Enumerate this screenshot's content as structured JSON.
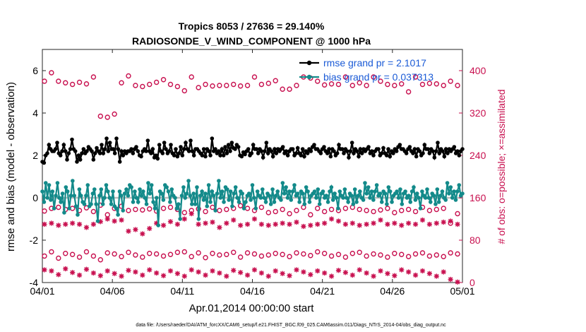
{
  "chart_data": {
    "type": "line",
    "title": "Tropics 8053 / 27636 = 29.140%",
    "subtitle": "RADIOSONDE_V_WIND_COMPONENT @ 1000 hPa",
    "xlabel": "Apr.01,2014 00:00:00 start",
    "ylabel": "rmse and bias (model - observation)",
    "ylabel_right": "# of obs: o=possible; ×=assimilated",
    "xlim": [
      0,
      30
    ],
    "ylim": [
      -4,
      7
    ],
    "ylim_right": [
      0,
      440
    ],
    "x_ticks": [
      0,
      5,
      10,
      15,
      20,
      25,
      30
    ],
    "x_tick_labels": [
      "04/01",
      "04/06",
      "04/11",
      "04/16",
      "04/21",
      "04/26",
      "05/01"
    ],
    "y_ticks": [
      -4,
      -2,
      0,
      2,
      4,
      6
    ],
    "y_tick_labels": [
      "-4",
      "-2",
      "0",
      "2",
      "4",
      "6"
    ],
    "y_right_ticks": [
      0,
      80,
      160,
      240,
      320,
      400
    ],
    "y_right_tick_labels": [
      "0",
      "80",
      "160",
      "240",
      "320",
      "400"
    ],
    "legend": [
      "rmse grand pr = 2.1017",
      "bias grand pr = 0.037313"
    ],
    "footer": "data file: /Users/raeder/DAI/ATM_forcXX/CAM6_setup/f.e21.FHIST_BGC.f09_025.CAM6assim.011/Diags_NTrS_2014-04/obs_diag_output.nc",
    "series": [
      {
        "name": "rmse",
        "color": "#000000",
        "axis": "left",
        "values": [
          1.7,
          1.65,
          2.0,
          2.1,
          2.5,
          2.3,
          2.2,
          2.2,
          2.3,
          2.6,
          2.1,
          2.0,
          2.2,
          2.5,
          2.2,
          1.8,
          2.1,
          2.3,
          2.75,
          2.3,
          2.2,
          1.7,
          2.0,
          1.8,
          2.1,
          2.3,
          2.1,
          2.2,
          2.4,
          2.3,
          2.2,
          1.8,
          2.1,
          2.35,
          2.2,
          2.1,
          2.5,
          2.1,
          2.3,
          2.8,
          2.2,
          2.6,
          2.3,
          2.3,
          2.1,
          2.8,
          2.3,
          1.7,
          2.2,
          2.0,
          2.2,
          2.1,
          2.2,
          2.2,
          2.3,
          2.1,
          2.3,
          2.4,
          2.2,
          2.0,
          1.95,
          2.2,
          2.3,
          2.2,
          2.7,
          2.2,
          2.1,
          2.3,
          1.9,
          2.0,
          1.85,
          2.5,
          2.2,
          2.1,
          2.6,
          2.3,
          2.1,
          2.2,
          2.5,
          2.1,
          2.0,
          2.3,
          1.95,
          2.1,
          2.4,
          2.0,
          2.3,
          2.6,
          2.3,
          2.2,
          2.7,
          2.2,
          2.0,
          2.3,
          2.3,
          2.2,
          2.1,
          2.0,
          2.3,
          1.95,
          2.3,
          2.2,
          2.0,
          2.8,
          2.2,
          2.3,
          2.1,
          2.2,
          2.0,
          2.3,
          2.0,
          2.4,
          2.1,
          2.5,
          2.2,
          2.6,
          2.35,
          2.3,
          2.5,
          2.4,
          2.0,
          1.95,
          2.15,
          2.05,
          2.2,
          2.3,
          2.0,
          2.1,
          2.5,
          2.3,
          2.3,
          2.1,
          2.3,
          2.2,
          1.9,
          2.2,
          2.6,
          2.1,
          2.3,
          2.2,
          1.95,
          2.3,
          2.1,
          2.3,
          2.2,
          2.3,
          2.4,
          2.1,
          2.2,
          2.0,
          2.2,
          2.3,
          2.3,
          2.0,
          2.1,
          2.35,
          2.1,
          2.0,
          2.3,
          1.95,
          2.2,
          2.1,
          2.3,
          2.2,
          2.4,
          2.5,
          2.3,
          2.3,
          2.2,
          2.1,
          2.3,
          2.4,
          2.2,
          2.1,
          2.3,
          1.95,
          2.3,
          2.2,
          2.0,
          2.1,
          2.5,
          2.3,
          2.3,
          2.1,
          2.3,
          2.2,
          1.9,
          2.2,
          2.6,
          2.1,
          2.3,
          2.2,
          1.95,
          2.3,
          2.1,
          2.3,
          2.2,
          2.3,
          2.4,
          2.1,
          2.2,
          2.0,
          2.2,
          2.3,
          2.3,
          2.0,
          2.1,
          2.35,
          2.1,
          2.0,
          2.3,
          1.95,
          2.2,
          2.1,
          2.3,
          2.2,
          2.4,
          2.5,
          2.3,
          2.3,
          2.2,
          2.1,
          2.3,
          2.4,
          2.2,
          2.1,
          2.3,
          1.95,
          2.3,
          2.2,
          2.0,
          2.1,
          2.5,
          2.3,
          2.3,
          2.1,
          2.3,
          2.2,
          1.9,
          2.2,
          2.6,
          2.1,
          2.3,
          2.2,
          1.95,
          2.3,
          2.1,
          2.3,
          2.2,
          2.3,
          2.4,
          2.1,
          2.2,
          2.0,
          2.2,
          2.3
        ]
      },
      {
        "name": "bias",
        "color": "#138a8a",
        "axis": "left",
        "values": [
          0.3,
          -0.2,
          0.7,
          0.0,
          0.6,
          -0.1,
          0.3,
          -0.5,
          0.1,
          0.7,
          0.0,
          -0.2,
          0.2,
          -0.7,
          0.5,
          0.3,
          -0.5,
          0.1,
          0.8,
          0.1,
          -0.4,
          -0.8,
          0.4,
          0.1,
          -0.2,
          -0.3,
          0.1,
          0.6,
          -0.4,
          -0.3,
          0.2,
          0.4,
          -0.3,
          -1.1,
          0.1,
          0.4,
          -0.3,
          0.0,
          0.6,
          0.3,
          0.0,
          -0.3,
          0.3,
          -0.4,
          -0.5,
          -0.8,
          0.3,
          0.1,
          -0.6,
          0.2,
          0.4,
          0.1,
          0.6,
          0.5,
          -0.2,
          0.3,
          0.0,
          -0.2,
          0.4,
          0.1,
          0.3,
          0.0,
          -0.3,
          0.7,
          0.2,
          0.6,
          -0.2,
          -0.5,
          0.0,
          -1.3,
          0.3,
          0.2,
          -0.1,
          0.6,
          0.5,
          0.3,
          -0.2,
          0.4,
          0.1,
          0.0,
          -0.5,
          -0.3,
          -1.0,
          0.1,
          0.5,
          0.0,
          0.2,
          0.8,
          0.1,
          -0.3,
          0.2,
          -0.3,
          0.5,
          -1.0,
          0.1,
          0.3,
          -0.1,
          0.2,
          -0.4,
          0.6,
          -0.2,
          0.3,
          0.1,
          -0.6,
          0.2,
          0.8,
          0.0,
          0.3,
          -0.2,
          0.5,
          0.4,
          -0.1,
          0.3,
          -0.4,
          0.2,
          0.5,
          0.0,
          -0.2,
          0.3,
          0.2,
          -0.5,
          -0.2,
          0.1,
          0.2,
          -0.1,
          0.6,
          0.0,
          -0.5,
          0.3,
          0.1,
          0.0,
          0.4,
          0.0,
          -0.2,
          0.2,
          0.1,
          -0.3,
          0.4,
          -0.2,
          0.1,
          0.3,
          0.0,
          -0.1,
          0.7,
          0.2,
          0.5,
          0.0,
          0.3,
          -0.1,
          0.3,
          0.6,
          0.1,
          0.2,
          -0.2,
          0.3,
          0.2,
          -0.3,
          0.5,
          0.3,
          -0.2,
          0.1,
          0.2,
          0.3,
          0.0,
          0.4,
          -0.3,
          0.2,
          0.3,
          0.0,
          0.1,
          -0.2,
          0.3,
          0.5,
          -0.1,
          0.2,
          0.0,
          -0.5,
          0.3,
          0.1,
          0.0,
          0.4,
          0.0,
          -0.2,
          0.2,
          0.1,
          -0.3,
          0.4,
          -0.2,
          0.1,
          0.3,
          0.0,
          -0.1,
          0.7,
          0.2,
          0.5,
          0.0,
          0.3,
          -0.1,
          0.3,
          0.6,
          0.1,
          0.2,
          -0.2,
          0.3,
          0.2,
          -0.3,
          0.5,
          0.3,
          -0.2,
          0.1,
          0.2,
          0.3,
          0.0,
          0.4,
          -0.3,
          0.2,
          0.3,
          0.0,
          0.1,
          -0.2,
          0.3,
          0.5,
          -0.1,
          0.2,
          0.0,
          -0.5,
          0.3,
          0.1,
          0.0,
          0.4,
          0.0,
          -0.2,
          0.2,
          0.1,
          -0.3,
          0.4,
          -0.2,
          0.1,
          0.3,
          0.0,
          -0.1,
          0.7,
          0.2,
          0.5,
          0.0,
          0.3,
          -0.1,
          0.3,
          0.6,
          0.1,
          0.2
        ]
      },
      {
        "name": "obs possible (high)",
        "color": "#c8104f",
        "axis": "right",
        "marker": "o",
        "values": [
          380,
          396,
          380,
          377,
          374,
          378,
          375,
          388,
          314,
          312,
          318,
          377,
          390,
          372,
          370,
          374,
          378,
          383,
          374,
          370,
          362,
          388,
          368,
          374,
          371,
          372,
          372,
          374,
          371,
          372,
          388,
          374,
          376,
          381,
          365,
          365,
          372,
          388,
          386,
          380,
          373,
          375,
          374,
          388,
          372,
          377,
          372,
          388,
          380,
          374,
          372,
          375,
          360,
          388,
          374,
          376,
          375,
          372,
          380,
          372
        ]
      },
      {
        "name": "obs assimilated (mid)",
        "color": "#c8104f",
        "axis": "right",
        "marker": "*",
        "values": [
          110,
          112,
          108,
          110,
          112,
          110,
          104,
          110,
          115,
          120,
          116,
          118,
          97,
          100,
          92,
          102,
          112,
          108,
          115,
          110,
          120,
          130,
          110,
          112,
          114,
          104,
          112,
          118,
          108,
          110,
          120,
          110,
          108,
          110,
          112,
          110,
          114,
          106,
          108,
          110,
          112,
          120,
          116,
          110,
          112,
          108,
          110,
          112,
          118,
          110,
          112,
          108,
          112,
          110,
          118,
          110,
          112,
          114,
          116,
          110
        ]
      },
      {
        "name": "obs possible (low)",
        "color": "#c8104f",
        "axis": "right",
        "marker": "o",
        "values": [
          135,
          140,
          142,
          138,
          140,
          136,
          141,
          134,
          146,
          128,
          140,
          144,
          136,
          138,
          137,
          139,
          135,
          140,
          142,
          138,
          132,
          136,
          139,
          134,
          142,
          136,
          138,
          140,
          145,
          140,
          136,
          142,
          132,
          134,
          138,
          130,
          136,
          142,
          128,
          140,
          134,
          138,
          136,
          140,
          142,
          138,
          136,
          134,
          137,
          140,
          132,
          136,
          138,
          134,
          142,
          136,
          138,
          140,
          112,
          130
        ]
      },
      {
        "name": "obs possible (bottom)",
        "color": "#c8104f",
        "axis": "right",
        "marker": "o",
        "values": [
          50,
          58,
          46,
          55,
          53,
          48,
          58,
          50,
          43,
          56,
          54,
          49,
          57,
          52,
          48,
          55,
          54,
          50,
          53,
          57,
          58,
          49,
          56,
          47,
          55,
          52,
          53,
          57,
          48,
          56,
          54,
          50,
          52,
          55,
          53,
          49,
          56,
          54,
          51,
          58,
          55,
          50,
          53,
          48,
          55,
          57,
          50,
          54,
          52,
          48,
          55,
          53,
          49,
          54,
          56,
          50,
          52,
          49,
          56,
          54
        ]
      },
      {
        "name": "obs assimilated (bottom)",
        "color": "#c8104f",
        "axis": "right",
        "marker": "*",
        "values": [
          24,
          22,
          15,
          26,
          19,
          14,
          25,
          18,
          13,
          22,
          17,
          12,
          23,
          20,
          14,
          24,
          18,
          13,
          22,
          17,
          12,
          24,
          20,
          14,
          22,
          18,
          12,
          23,
          19,
          14,
          24,
          18,
          12,
          22,
          17,
          13,
          24,
          20,
          15,
          22,
          18,
          12,
          23,
          19,
          14,
          24,
          18,
          12,
          22,
          17,
          13,
          24,
          20,
          14,
          22,
          17,
          12,
          20,
          6,
          1
        ]
      }
    ]
  }
}
